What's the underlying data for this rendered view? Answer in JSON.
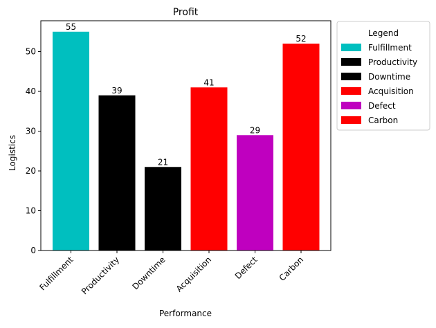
{
  "chart_data": {
    "type": "bar",
    "title": "Profit",
    "xlabel": "Performance",
    "ylabel": "Logistics",
    "categories": [
      "Fulfillment",
      "Productivity",
      "Downtime",
      "Acquisition",
      "Defect",
      "Carbon"
    ],
    "values": [
      55,
      39,
      21,
      41,
      29,
      52
    ],
    "colors": [
      "#00bfbf",
      "#000000",
      "#000000",
      "#ff0000",
      "#bf00bf",
      "#ff0000"
    ],
    "ylim": [
      0,
      57.75
    ],
    "yticks": [
      0,
      10,
      20,
      30,
      40,
      50
    ],
    "grid": false,
    "legend": {
      "title": "Legend",
      "placement": "outside-right-top",
      "entries": [
        {
          "label": "Fulfillment",
          "color": "#00bfbf"
        },
        {
          "label": "Productivity",
          "color": "#000000"
        },
        {
          "label": "Downtime",
          "color": "#000000"
        },
        {
          "label": "Acquisition",
          "color": "#ff0000"
        },
        {
          "label": "Defect",
          "color": "#bf00bf"
        },
        {
          "label": "Carbon",
          "color": "#ff0000"
        }
      ]
    }
  }
}
